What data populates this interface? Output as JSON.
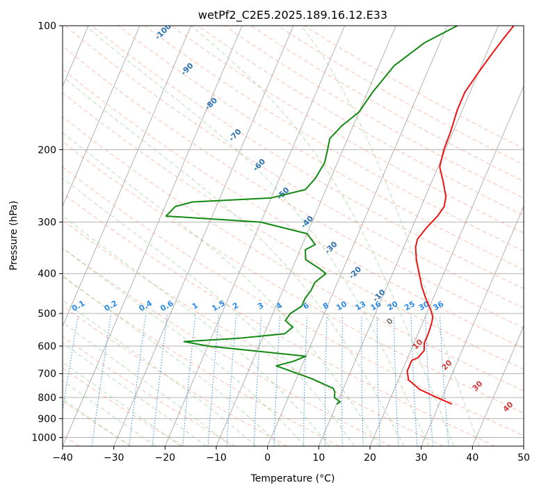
{
  "chart_data": {
    "type": "line",
    "subtype": "skew-T log-P diagram",
    "title": "wetPf2_C2E5.2025.189.16.12.E33",
    "xlabel": "Temperature (°C)",
    "ylabel": "Pressure (hPa)",
    "xlim": [
      -40,
      50
    ],
    "ylim": [
      1050,
      100
    ],
    "y_scale": "log",
    "x_ticks": [
      -40,
      -30,
      -20,
      -10,
      0,
      10,
      20,
      30,
      40,
      50
    ],
    "y_ticks": [
      100,
      200,
      300,
      400,
      500,
      600,
      700,
      800,
      900,
      1000
    ],
    "grid": true,
    "colors": {
      "temperature": "#ee1111",
      "dewpoint": "#118811",
      "dry_adiabat": "#fa8a6a",
      "moist_adiabat": "#7ac47a",
      "mixing_ratio": "#2a8ae8",
      "isotherm": "#888888",
      "label_blue": "#2a6fb0",
      "label_red": "#d23a3a",
      "label_mix": "#2a8ae8"
    },
    "series": [
      {
        "key": "temperature",
        "points": [
          [
            32.5,
            830
          ],
          [
            29,
            800
          ],
          [
            25,
            765
          ],
          [
            22,
            725
          ],
          [
            21,
            690
          ],
          [
            21,
            650
          ],
          [
            22,
            640
          ],
          [
            22.6,
            615
          ],
          [
            22,
            590
          ],
          [
            22,
            560
          ],
          [
            21.8,
            530
          ],
          [
            21.5,
            510
          ],
          [
            20.5,
            490
          ],
          [
            18.6,
            460
          ],
          [
            16.8,
            430
          ],
          [
            15.2,
            400
          ],
          [
            13.5,
            370
          ],
          [
            12.3,
            345
          ],
          [
            12,
            330
          ],
          [
            12.8,
            310
          ],
          [
            14,
            290
          ],
          [
            14.5,
            275
          ],
          [
            14,
            260
          ],
          [
            12.3,
            240
          ],
          [
            10.3,
            220
          ],
          [
            9.7,
            200
          ],
          [
            9.5,
            180
          ],
          [
            9,
            160
          ],
          [
            9,
            145
          ],
          [
            10,
            130
          ],
          [
            11,
            118
          ],
          [
            12,
            108
          ],
          [
            13,
            100
          ]
        ]
      },
      {
        "key": "dewpoint",
        "points": [
          [
            10,
            830
          ],
          [
            10.5,
            820
          ],
          [
            9,
            800
          ],
          [
            8.6,
            775
          ],
          [
            8,
            760
          ],
          [
            3,
            720
          ],
          [
            -5,
            670
          ],
          [
            -2,
            653
          ],
          [
            0,
            635
          ],
          [
            -20,
            600
          ],
          [
            -25,
            585
          ],
          [
            -15,
            575
          ],
          [
            -6,
            560
          ],
          [
            -5,
            540
          ],
          [
            -7,
            520
          ],
          [
            -6.6,
            500
          ],
          [
            -5,
            480
          ],
          [
            -5,
            460
          ],
          [
            -4.5,
            440
          ],
          [
            -4.4,
            420
          ],
          [
            -3,
            400
          ],
          [
            -4.5,
            390
          ],
          [
            -8.1,
            370
          ],
          [
            -9,
            350
          ],
          [
            -7.5,
            340
          ],
          [
            -10,
            320
          ],
          [
            -20,
            300
          ],
          [
            -39,
            290
          ],
          [
            -38,
            275
          ],
          [
            -35,
            268
          ],
          [
            -20,
            262
          ],
          [
            -14,
            250
          ],
          [
            -13,
            235
          ],
          [
            -12.5,
            215
          ],
          [
            -13,
            200
          ],
          [
            -13.5,
            188
          ],
          [
            -12.2,
            175
          ],
          [
            -10,
            162
          ],
          [
            -9,
            145
          ],
          [
            -7,
            125
          ],
          [
            -3,
            110
          ],
          [
            2,
            100
          ]
        ]
      }
    ],
    "dry_adiabat_labels": [
      "-100",
      "-90",
      "-80",
      "-70",
      "-60",
      "-50",
      "-40",
      "-30",
      "-20",
      "-10",
      "0",
      "10",
      "20",
      "30",
      "40"
    ],
    "mixing_ratio_labels": [
      "0.1",
      "0.2",
      "0.4",
      "0.6",
      "1",
      "1.5",
      "2",
      "3",
      "4",
      "6",
      "8",
      "10",
      "13",
      "16",
      "20",
      "25",
      "30",
      "36"
    ]
  }
}
